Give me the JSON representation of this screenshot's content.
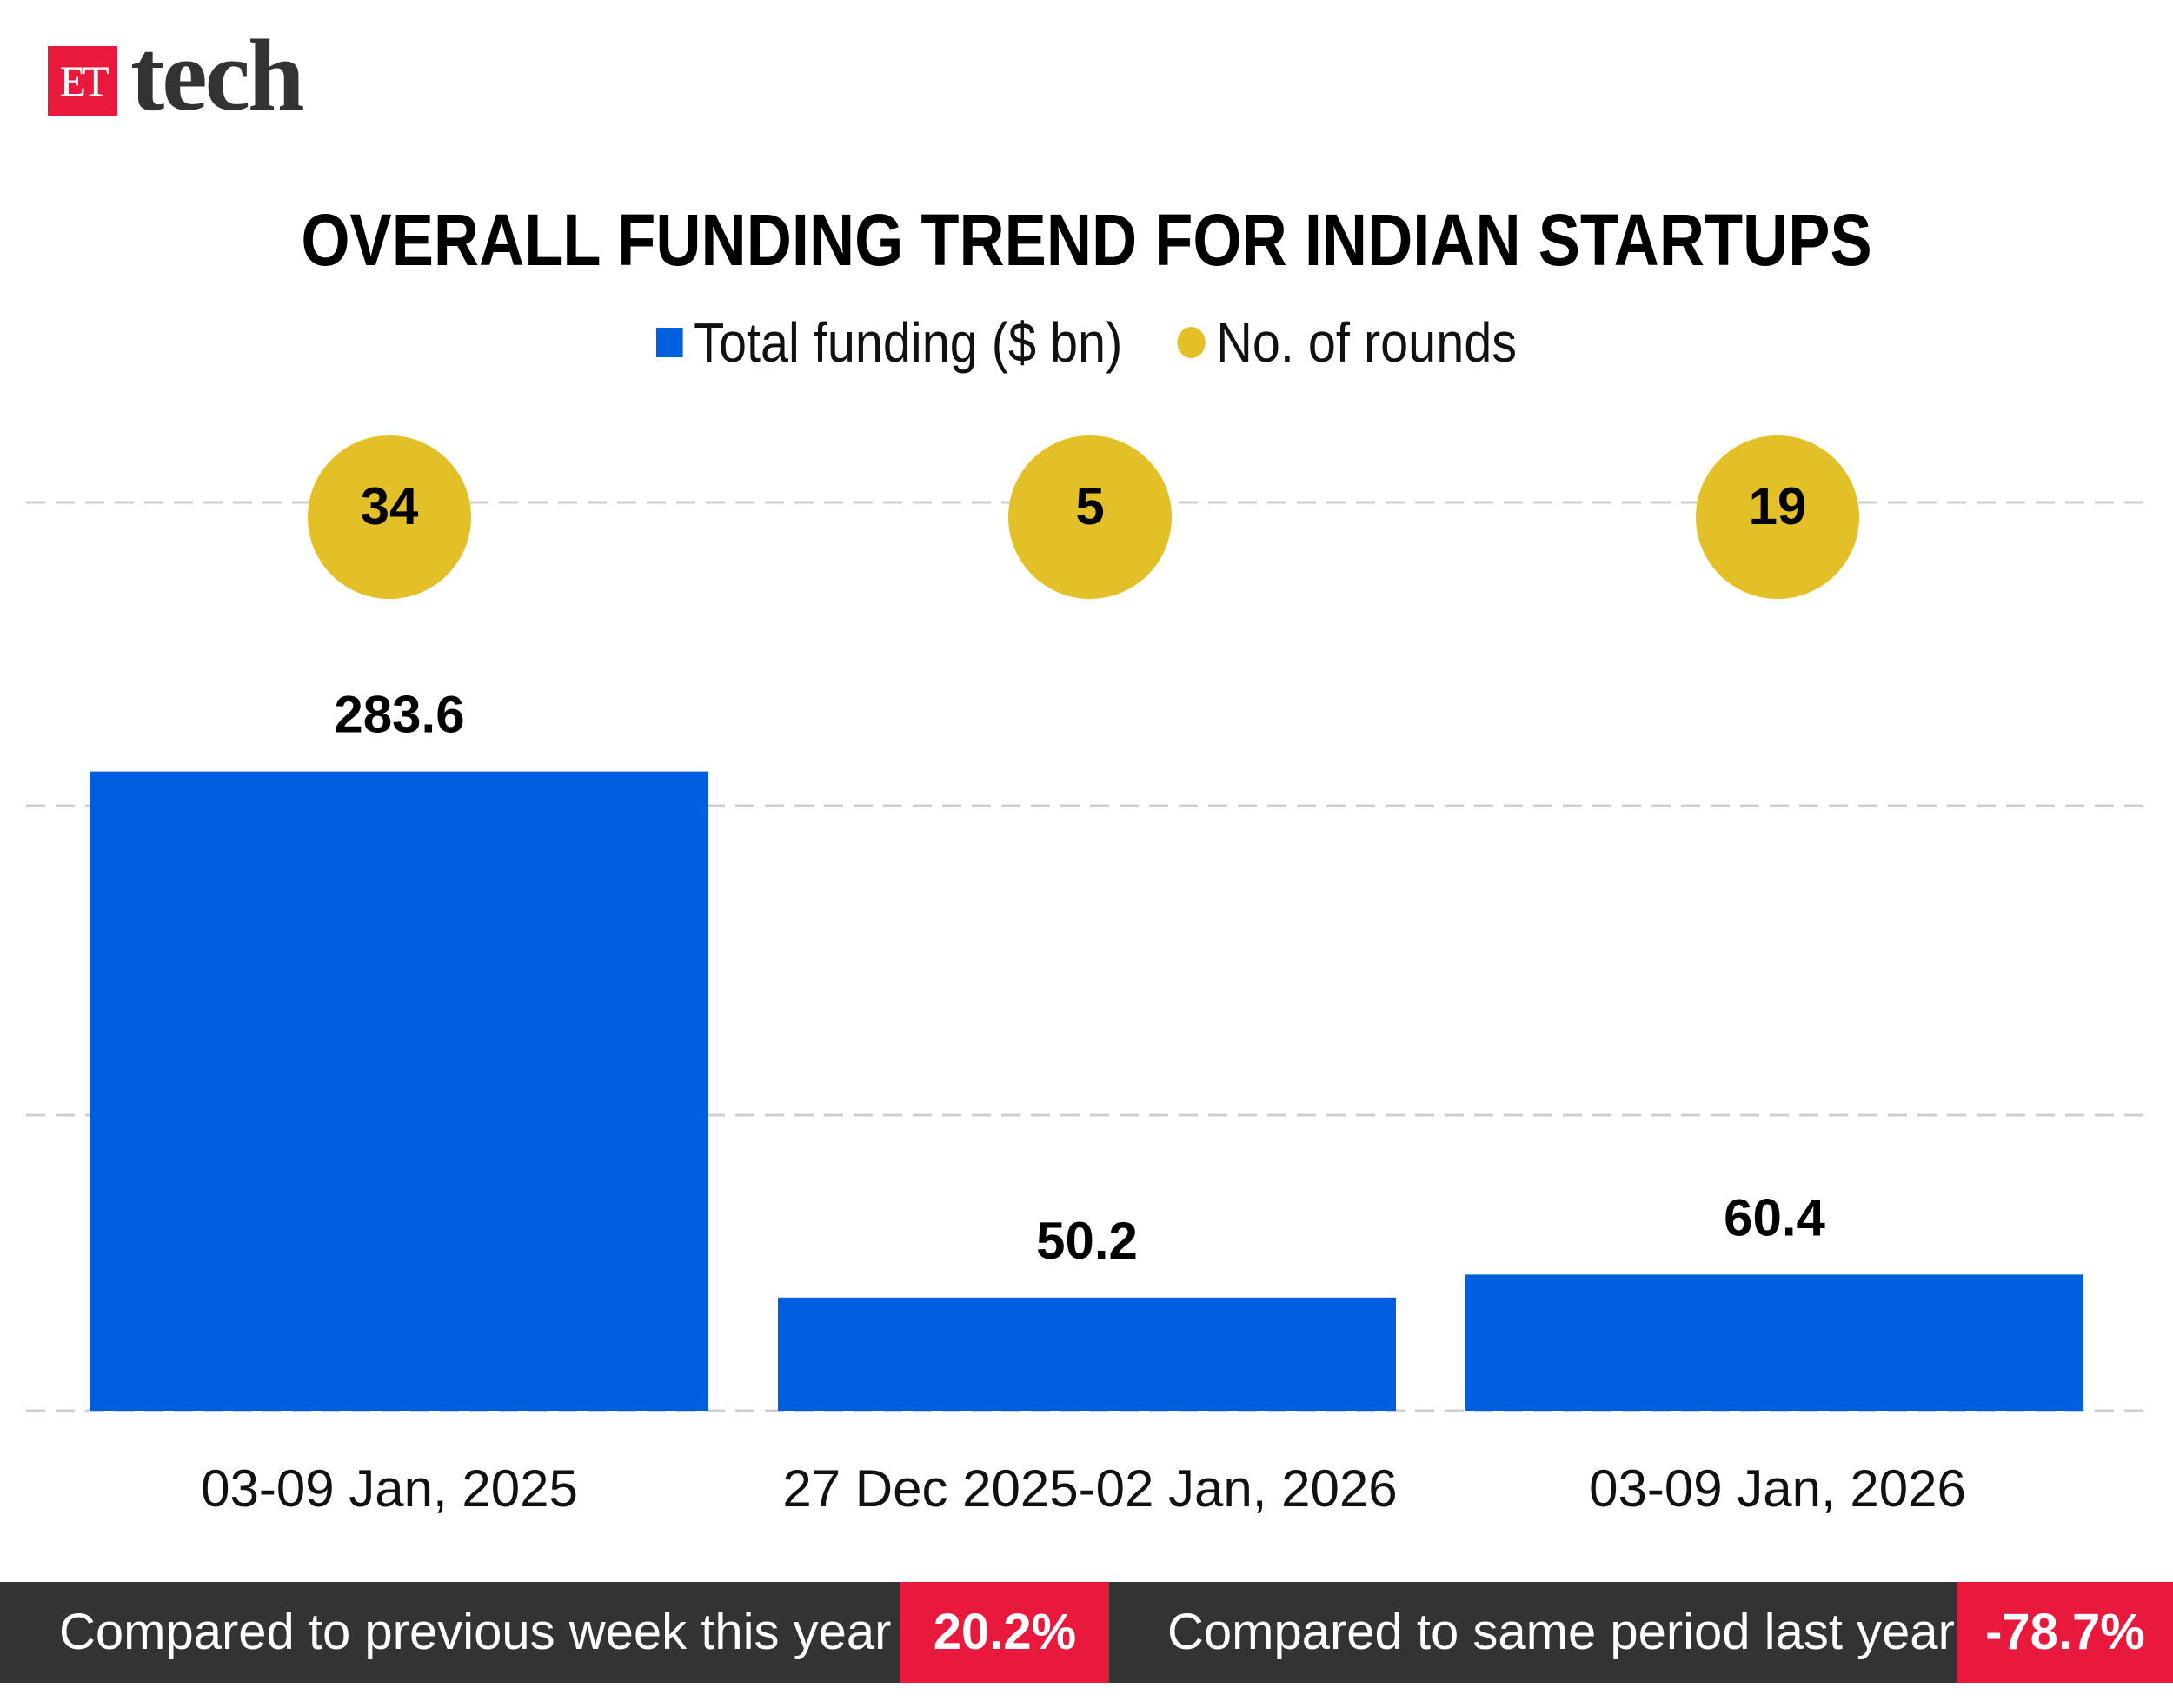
{
  "logo": {
    "badge": "ET",
    "text": "tech"
  },
  "colors": {
    "bar": "#005fdf",
    "rounds": "#e3c027",
    "accent": "#e8193c",
    "footer_bg": "#333333"
  },
  "chart_data": {
    "type": "bar",
    "title": "OVERALL FUNDING TREND FOR INDIAN STARTUPS",
    "legend": [
      "Total funding ($ bn)",
      "No. of rounds"
    ],
    "legend_position": "top",
    "categories": [
      "03-09 Jan, 2025",
      "27 Dec 2025-02 Jan, 2026",
      "03-09 Jan, 2026"
    ],
    "series": [
      {
        "name": "Total funding ($ bn)",
        "values": [
          283.6,
          50.2,
          60.4
        ],
        "labels": [
          "283.6",
          "50.2",
          "60.4"
        ]
      },
      {
        "name": "No. of rounds",
        "values": [
          34,
          5,
          19
        ],
        "labels": [
          "34",
          "5",
          "19"
        ]
      }
    ],
    "ylim": [
      0,
      403
    ],
    "grid": true
  },
  "footer": {
    "items": [
      {
        "label": "Compared to previous week this year",
        "value": "20.2%"
      },
      {
        "label": "Compared to same period last year",
        "value": "-78.7%"
      }
    ]
  }
}
